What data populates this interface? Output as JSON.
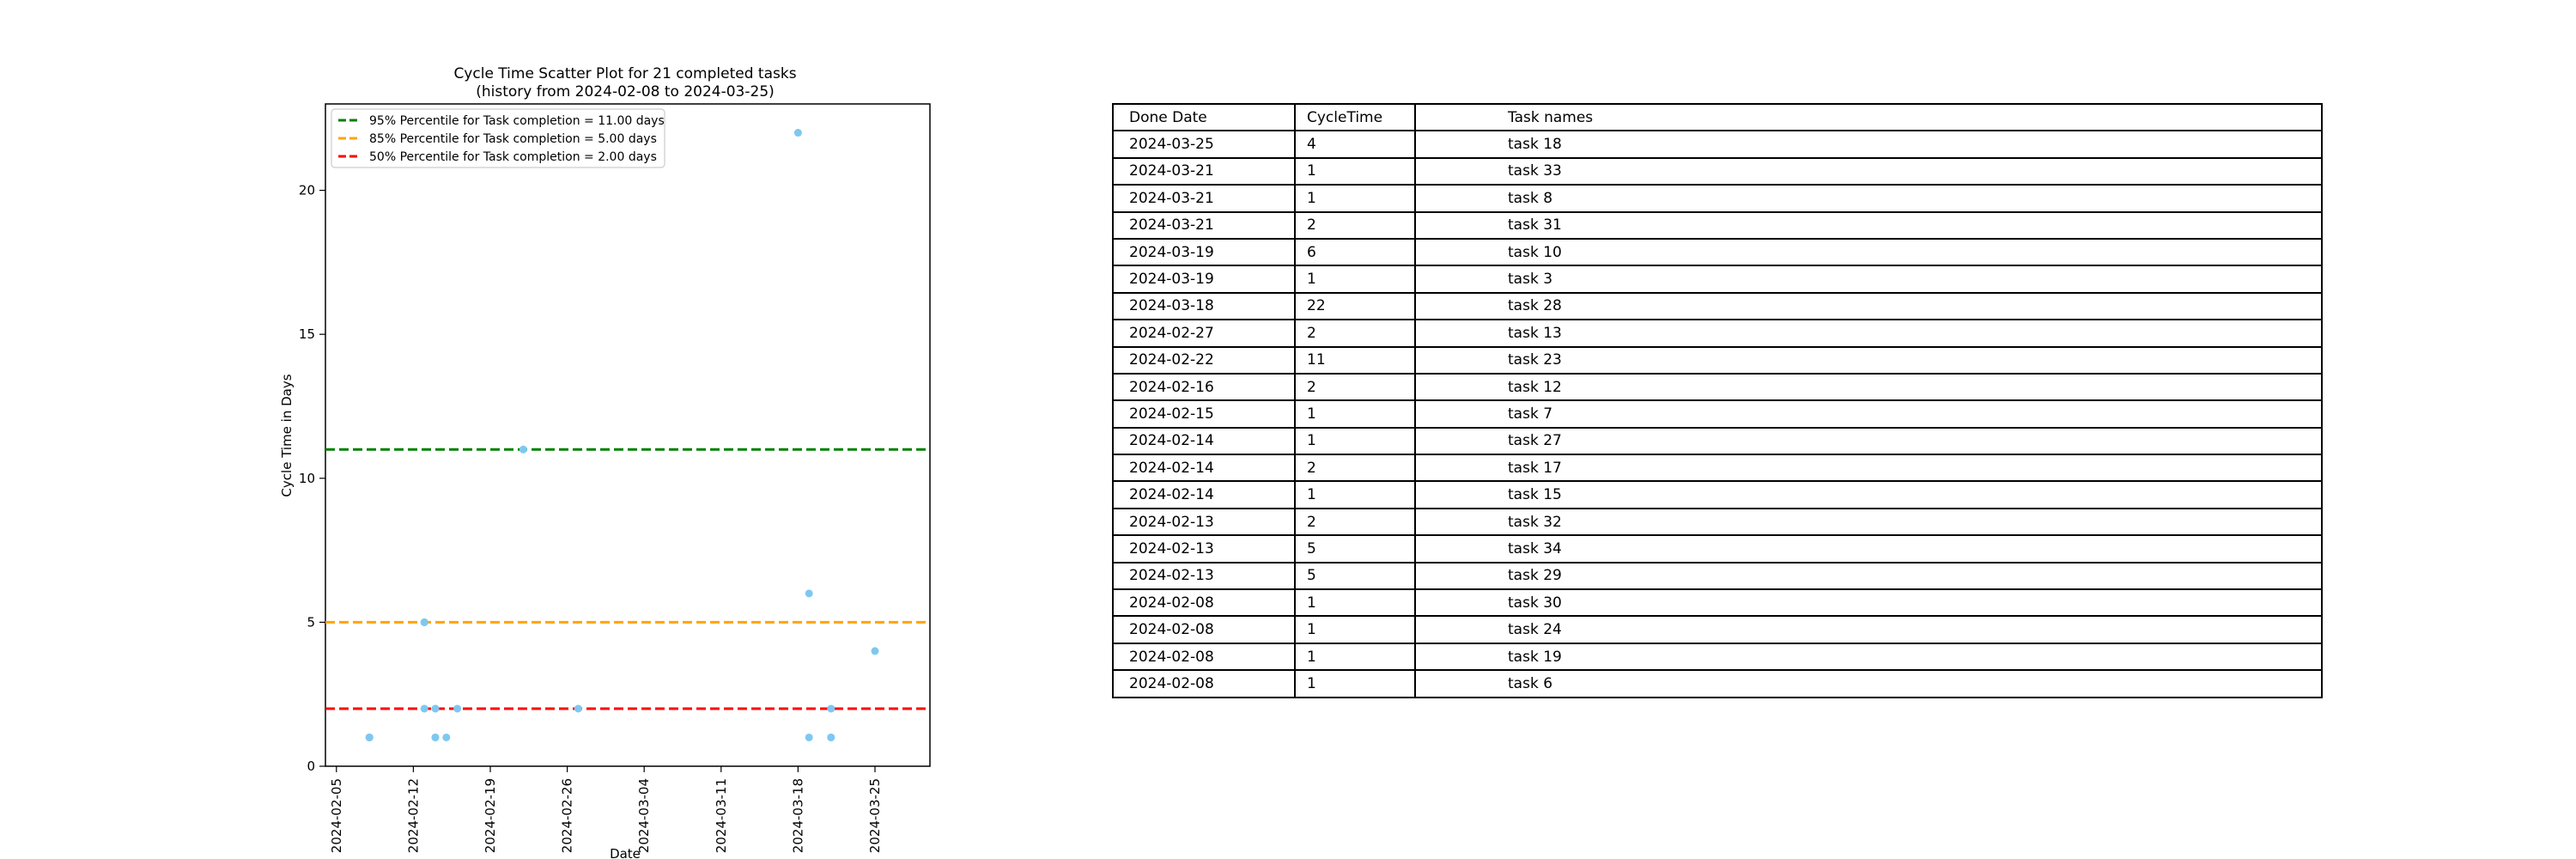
{
  "chart_data": {
    "type": "scatter",
    "title_line1": "Cycle Time Scatter Plot for 21 completed tasks",
    "title_line2": "(history from 2024-02-08 to 2024-03-25)",
    "xlabel": "Date",
    "ylabel": "Cycle Time in Days",
    "x_range": [
      "2024-02-04",
      "2024-03-30"
    ],
    "ylim": [
      0,
      23
    ],
    "yticks": [
      0,
      5,
      10,
      15,
      20
    ],
    "xticks": [
      "2024-02-05",
      "2024-02-12",
      "2024-02-19",
      "2024-02-26",
      "2024-03-04",
      "2024-03-11",
      "2024-03-18",
      "2024-03-25"
    ],
    "point_color": "#7ec8f0",
    "legend_position": "top-left",
    "percentiles": [
      {
        "label": "95% Percentile for Task completion = 11.00 days",
        "value": 11,
        "color": "#008000"
      },
      {
        "label": "85% Percentile for Task completion = 5.00 days",
        "value": 5,
        "color": "#ffa500"
      },
      {
        "label": "50% Percentile for Task completion = 2.00 days",
        "value": 2,
        "color": "#ff0000"
      }
    ],
    "points": [
      {
        "date": "2024-03-25",
        "value": 4
      },
      {
        "date": "2024-03-21",
        "value": 1
      },
      {
        "date": "2024-03-21",
        "value": 1
      },
      {
        "date": "2024-03-21",
        "value": 2
      },
      {
        "date": "2024-03-19",
        "value": 6
      },
      {
        "date": "2024-03-19",
        "value": 1
      },
      {
        "date": "2024-03-18",
        "value": 22
      },
      {
        "date": "2024-02-27",
        "value": 2
      },
      {
        "date": "2024-02-22",
        "value": 11
      },
      {
        "date": "2024-02-16",
        "value": 2
      },
      {
        "date": "2024-02-15",
        "value": 1
      },
      {
        "date": "2024-02-14",
        "value": 1
      },
      {
        "date": "2024-02-14",
        "value": 2
      },
      {
        "date": "2024-02-14",
        "value": 1
      },
      {
        "date": "2024-02-13",
        "value": 2
      },
      {
        "date": "2024-02-13",
        "value": 5
      },
      {
        "date": "2024-02-13",
        "value": 5
      },
      {
        "date": "2024-02-08",
        "value": 1
      },
      {
        "date": "2024-02-08",
        "value": 1
      },
      {
        "date": "2024-02-08",
        "value": 1
      },
      {
        "date": "2024-02-08",
        "value": 1
      }
    ]
  },
  "table": {
    "headers": [
      "Done Date",
      "CycleTime",
      "Task names"
    ],
    "rows": [
      [
        "2024-03-25",
        "4",
        "task 18"
      ],
      [
        "2024-03-21",
        "1",
        "task 33"
      ],
      [
        "2024-03-21",
        "1",
        "task 8"
      ],
      [
        "2024-03-21",
        "2",
        "task 31"
      ],
      [
        "2024-03-19",
        "6",
        "task 10"
      ],
      [
        "2024-03-19",
        "1",
        "task 3"
      ],
      [
        "2024-03-18",
        "22",
        "task 28"
      ],
      [
        "2024-02-27",
        "2",
        "task 13"
      ],
      [
        "2024-02-22",
        "11",
        "task 23"
      ],
      [
        "2024-02-16",
        "2",
        "task 12"
      ],
      [
        "2024-02-15",
        "1",
        "task 7"
      ],
      [
        "2024-02-14",
        "1",
        "task 27"
      ],
      [
        "2024-02-14",
        "2",
        "task 17"
      ],
      [
        "2024-02-14",
        "1",
        "task 15"
      ],
      [
        "2024-02-13",
        "2",
        "task 32"
      ],
      [
        "2024-02-13",
        "5",
        "task 34"
      ],
      [
        "2024-02-13",
        "5",
        "task 29"
      ],
      [
        "2024-02-08",
        "1",
        "task 30"
      ],
      [
        "2024-02-08",
        "1",
        "task 24"
      ],
      [
        "2024-02-08",
        "1",
        "task 19"
      ],
      [
        "2024-02-08",
        "1",
        "task 6"
      ]
    ]
  }
}
